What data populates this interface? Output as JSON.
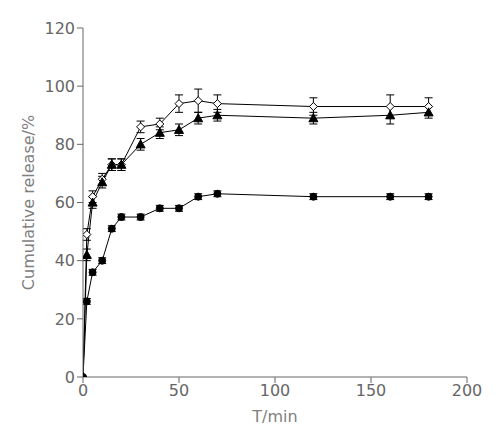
{
  "chart_data": {
    "type": "line",
    "title": "",
    "xlabel": "T/min",
    "ylabel": "Cumulative release/%",
    "x": [
      0,
      2,
      5,
      10,
      15,
      20,
      30,
      40,
      50,
      60,
      70,
      120,
      160,
      180
    ],
    "xlim": [
      0,
      200
    ],
    "ylim": [
      0,
      120
    ],
    "xticks": [
      0,
      50,
      100,
      150,
      200
    ],
    "yticks": [
      0,
      20,
      40,
      60,
      80,
      100,
      120
    ],
    "grid": false,
    "series": [
      {
        "color": "#000000",
        "marker": "diamond",
        "values": [
          0,
          49,
          62,
          68,
          73,
          73,
          86,
          87,
          94,
          95,
          94,
          93,
          93,
          93
        ],
        "errors": [
          0,
          2,
          2,
          2,
          2,
          2,
          2,
          2,
          3,
          4,
          3,
          3,
          4,
          3
        ]
      },
      {
        "color": "#000000",
        "marker": "triangle",
        "values": [
          0,
          42,
          60,
          67,
          73,
          73,
          80,
          84,
          85,
          89,
          90,
          89,
          90,
          91
        ],
        "errors": [
          0,
          2,
          2,
          2,
          2,
          2,
          2,
          2,
          2,
          2,
          2,
          2,
          3,
          2
        ]
      },
      {
        "color": "#000000",
        "marker": "circle",
        "values": [
          0,
          26,
          36,
          40,
          51,
          55,
          55,
          58,
          58,
          62,
          63,
          62,
          62,
          62
        ],
        "errors": [
          0,
          1,
          1,
          1,
          1,
          1,
          1,
          1,
          1,
          1,
          1,
          1,
          1,
          1
        ]
      }
    ]
  }
}
